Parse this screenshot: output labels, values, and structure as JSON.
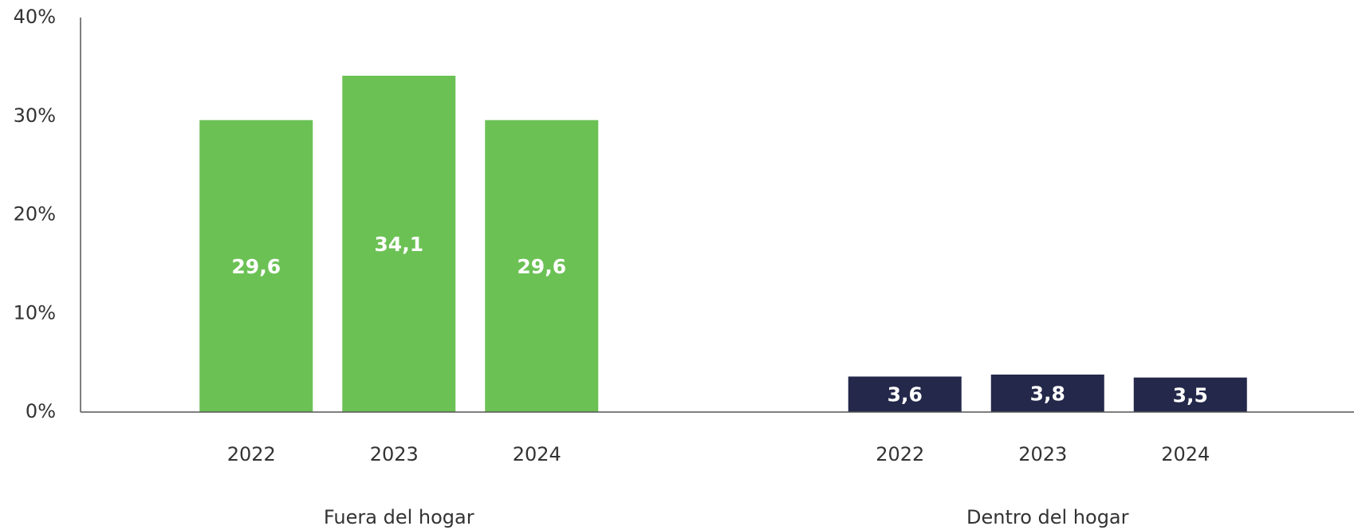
{
  "chart_data": {
    "type": "bar",
    "groups": [
      {
        "name": "Fuera del hogar",
        "color": "#6cc155",
        "categories": [
          "2022",
          "2023",
          "2024"
        ],
        "values": [
          29.6,
          34.1,
          29.6
        ],
        "value_labels": [
          "29,6",
          "34,1",
          "29,6"
        ]
      },
      {
        "name": "Dentro del hogar",
        "color": "#24284a",
        "categories": [
          "2022",
          "2023",
          "2024"
        ],
        "values": [
          3.6,
          3.8,
          3.5
        ],
        "value_labels": [
          "3,6",
          "3,8",
          "3,5"
        ]
      }
    ],
    "ylim": [
      0,
      40
    ],
    "yticks": [
      {
        "value": 0,
        "label": "0%"
      },
      {
        "value": 10,
        "label": "10%"
      },
      {
        "value": 20,
        "label": "20%"
      },
      {
        "value": 30,
        "label": "30%"
      },
      {
        "value": 40,
        "label": "40%"
      }
    ],
    "grid": false
  }
}
